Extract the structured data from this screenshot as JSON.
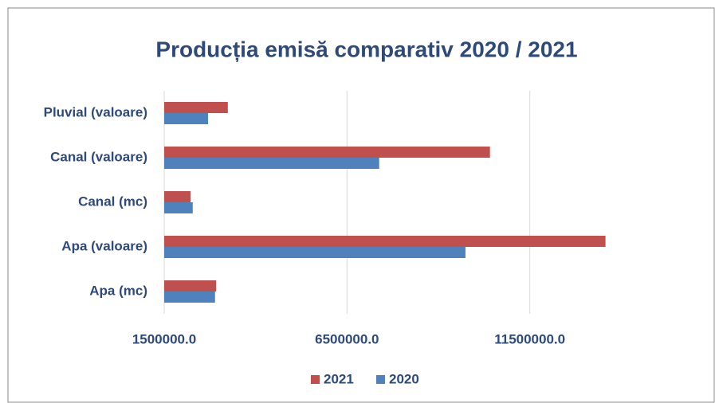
{
  "chart_data": {
    "type": "barh",
    "title": "Producția emisă comparativ 2020 / 2021",
    "categories": [
      "Pluvial (valoare)",
      "Canal (valoare)",
      "Canal (mc)",
      "Apa (valoare)",
      "Apa (mc)"
    ],
    "series": [
      {
        "name": "2021",
        "color": "#c0504d",
        "values": [
          3240000,
          10410000,
          2220000,
          13570000,
          2920000
        ]
      },
      {
        "name": "2020",
        "color": "#4f81bd",
        "values": [
          2700000,
          7380000,
          2280000,
          9740000,
          2890000
        ]
      }
    ],
    "xlim": [
      1500000,
      16500000
    ],
    "xticks": [
      {
        "value": 1500000,
        "label": "1500000.0"
      },
      {
        "value": 6500000,
        "label": "6500000.0"
      },
      {
        "value": 11500000,
        "label": "11500000.0"
      }
    ],
    "grid": true,
    "legend": "bottom"
  }
}
